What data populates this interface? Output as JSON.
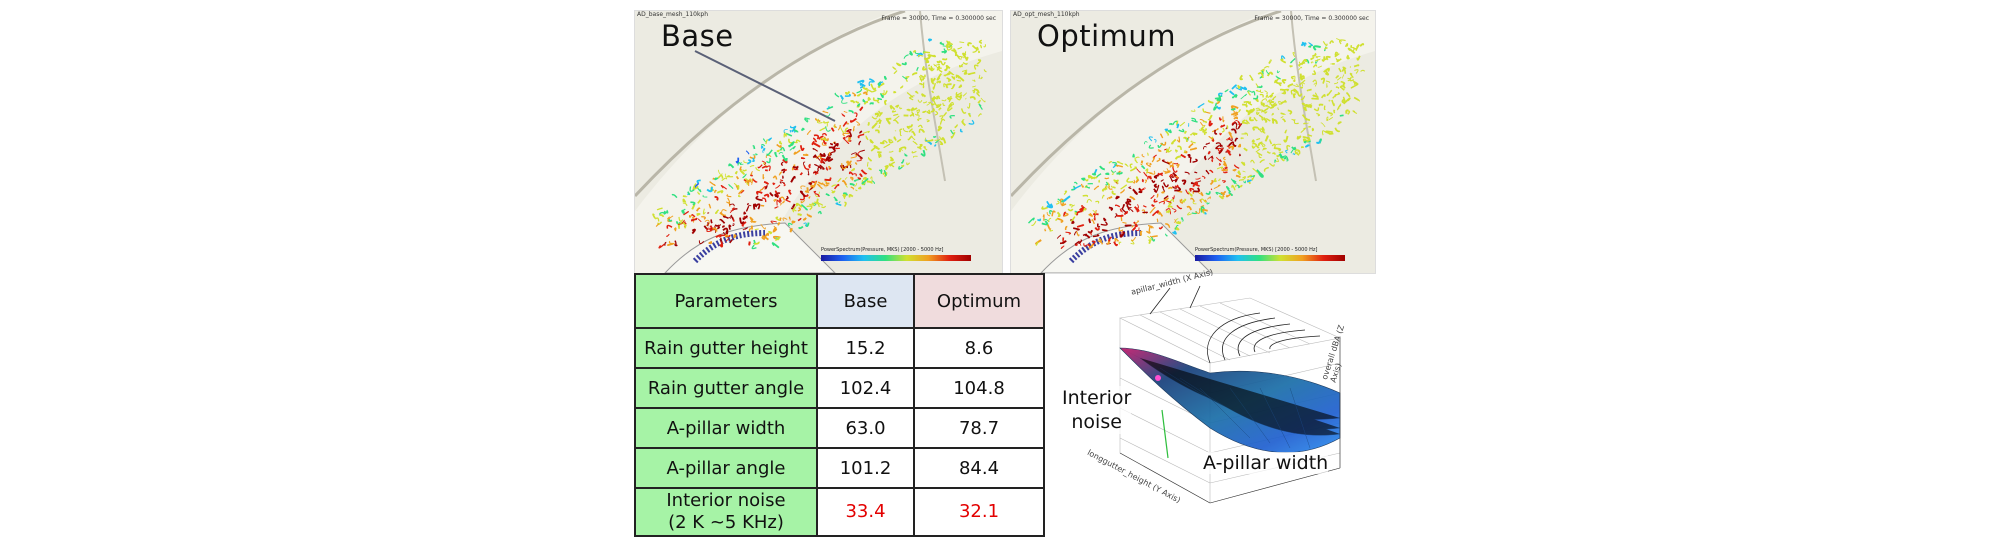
{
  "panels": [
    {
      "title": "Base",
      "caption": "AD_base_mesh_110kph",
      "info": "Frame = 30000, Time = 0.300000 sec",
      "colorbar_title": "PowerSpectrum(Pressure, MKS) [2000 - 5000 Hz]"
    },
    {
      "title": "Optimum",
      "caption": "AD_opt_mesh_110kph",
      "info": "Frame = 30000, Time = 0.300000 sec",
      "colorbar_title": "PowerSpectrum(Pressure, MKS) [2000 - 5000 Hz]"
    }
  ],
  "table": {
    "headers": {
      "param": "Parameters",
      "base": "Base",
      "opt": "Optimum"
    },
    "rows": [
      {
        "param": "Rain gutter height",
        "base": "15.2",
        "opt": "8.6"
      },
      {
        "param": "Rain gutter angle",
        "base": "102.4",
        "opt": "104.8"
      },
      {
        "param": "A-pillar width",
        "base": "63.0",
        "opt": "78.7"
      },
      {
        "param": "A-pillar angle",
        "base": "101.2",
        "opt": "84.4"
      }
    ],
    "noise": {
      "param_line1": "Interior noise",
      "param_line2": "(2 K ~5 KHz)",
      "base": "33.4",
      "opt": "32.1"
    }
  },
  "surface": {
    "label_noise_1": "Interior",
    "label_noise_2": "noise",
    "label_width": "A-pillar width",
    "axis_y": "longgutter_height (Y Axis)",
    "axis_z": "overall dBA (Z Axis)",
    "axis_x": "apillar_width (X Axis)"
  },
  "colors": {
    "param_bg": "#a6f3a6",
    "base_bg": "#dde6f2",
    "opt_bg": "#f0dcdd",
    "noise_value": "#e30000"
  }
}
